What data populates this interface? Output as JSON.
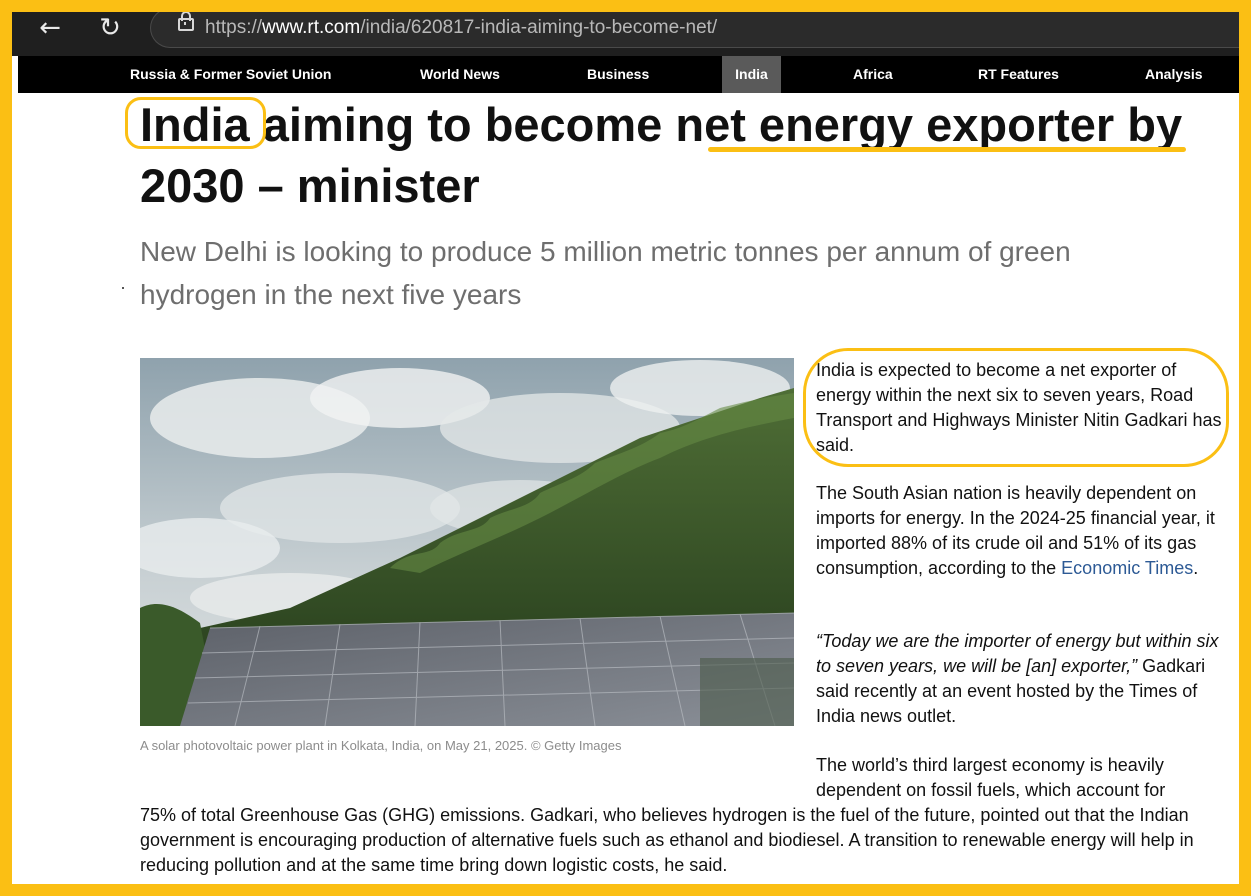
{
  "browser": {
    "back_icon": "←",
    "reload_icon": "↻",
    "url_prefix": "https://",
    "url_domain": "www.rt.com",
    "url_path": "/india/620817-india-aiming-to-become-net/"
  },
  "nav": {
    "items": [
      {
        "label": "Russia & Former Soviet Union"
      },
      {
        "label": "World News"
      },
      {
        "label": "Business"
      },
      {
        "label": "India"
      },
      {
        "label": "Africa"
      },
      {
        "label": "RT Features"
      },
      {
        "label": "Analysis"
      }
    ],
    "active": "India"
  },
  "article": {
    "headline": {
      "part1": "India",
      "part2": " aiming to become ",
      "part3": "net energy exporter",
      "part4": " by 2030 – minister"
    },
    "subheadline": "New Delhi is looking to produce 5 million metric tonnes per annum of green hydrogen in the next five years",
    "image_caption": "A solar photovoltaic power plant in Kolkata, India, on May 21, 2025. © Getty Images",
    "p1": "India is expected to become a net exporter of energy within the next six to seven years, Road Transport and Highways Minister Nitin Gadkari has said.",
    "p2_text": "The South Asian nation is heavily dependent on imports for energy. In the 2024-25 financial year, it imported 88% of its crude oil and 51% of its gas consumption, according to the",
    "p2_link": "Economic Times",
    "p2_end": ".",
    "p3_quote": "“Today we are the importer of energy but within six to seven years, we will be [an] exporter,”",
    "p3_rest": " Gadkari said recently at an event hosted by the Times of India news outlet.",
    "p4_start": "The world’s third largest economy is heavily dependent on fossil fuels, which account for",
    "p4_rest": "75% of total Greenhouse Gas (GHG) emissions. Gadkari, who believes hydrogen is the fuel of the future, pointed out that the Indian government is encouraging production of alternative fuels such as ethanol and biodiesel. A transition to renewable energy will help in reducing pollution and at the same time bring down logistic costs, he said."
  },
  "colors": {
    "highlight": "#fbbf14",
    "link": "#2d5a95",
    "nav_bg": "#000000",
    "nav_active": "#5a5a5a"
  }
}
